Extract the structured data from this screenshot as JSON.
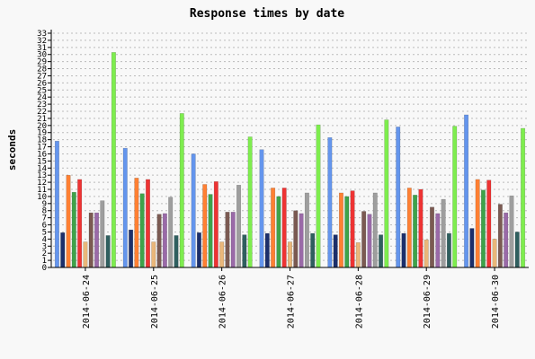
{
  "chart_data": {
    "type": "bar",
    "title": "Response times by date",
    "xlabel": "",
    "ylabel": "seconds",
    "ylim": [
      0,
      33
    ],
    "ytick_step": 1,
    "grid": "horizontal dotted",
    "legend": "none",
    "categories": [
      "2014-06-24",
      "2014-06-25",
      "2014-06-26",
      "2014-06-27",
      "2014-06-28",
      "2014-06-29",
      "2014-06-30"
    ],
    "series": [
      {
        "color": "#6495ed",
        "values": [
          17.8,
          16.8,
          16.0,
          16.6,
          18.3,
          19.8,
          21.5
        ]
      },
      {
        "color": "#1c2f6b",
        "values": [
          4.9,
          5.3,
          4.9,
          4.8,
          4.6,
          4.8,
          5.5
        ]
      },
      {
        "color": "#ff8033",
        "values": [
          13.0,
          12.6,
          11.7,
          11.2,
          10.5,
          11.2,
          12.4
        ]
      },
      {
        "color": "#3ea34a",
        "values": [
          10.6,
          10.4,
          10.3,
          10.0,
          10.0,
          10.2,
          10.9
        ]
      },
      {
        "color": "#ee3333",
        "values": [
          12.4,
          12.4,
          12.1,
          11.2,
          10.8,
          11.0,
          12.3
        ]
      },
      {
        "color": "#eab77a",
        "values": [
          3.6,
          3.6,
          3.6,
          3.6,
          3.5,
          3.9,
          4.0
        ]
      },
      {
        "color": "#7b5a52",
        "values": [
          7.7,
          7.5,
          7.8,
          8.0,
          7.9,
          8.5,
          8.9
        ]
      },
      {
        "color": "#9a6aa8",
        "values": [
          7.7,
          7.6,
          7.8,
          7.6,
          7.5,
          7.6,
          7.7
        ]
      },
      {
        "color": "#9e9e9e",
        "values": [
          9.4,
          9.9,
          11.6,
          10.5,
          10.5,
          9.6,
          10.1
        ]
      },
      {
        "color": "#2f5f5f",
        "values": [
          4.5,
          4.5,
          4.6,
          4.8,
          4.6,
          4.8,
          5.0
        ]
      },
      {
        "color": "#7eed4e",
        "values": [
          30.3,
          21.7,
          18.4,
          20.1,
          20.8,
          19.9,
          19.6
        ]
      }
    ]
  }
}
